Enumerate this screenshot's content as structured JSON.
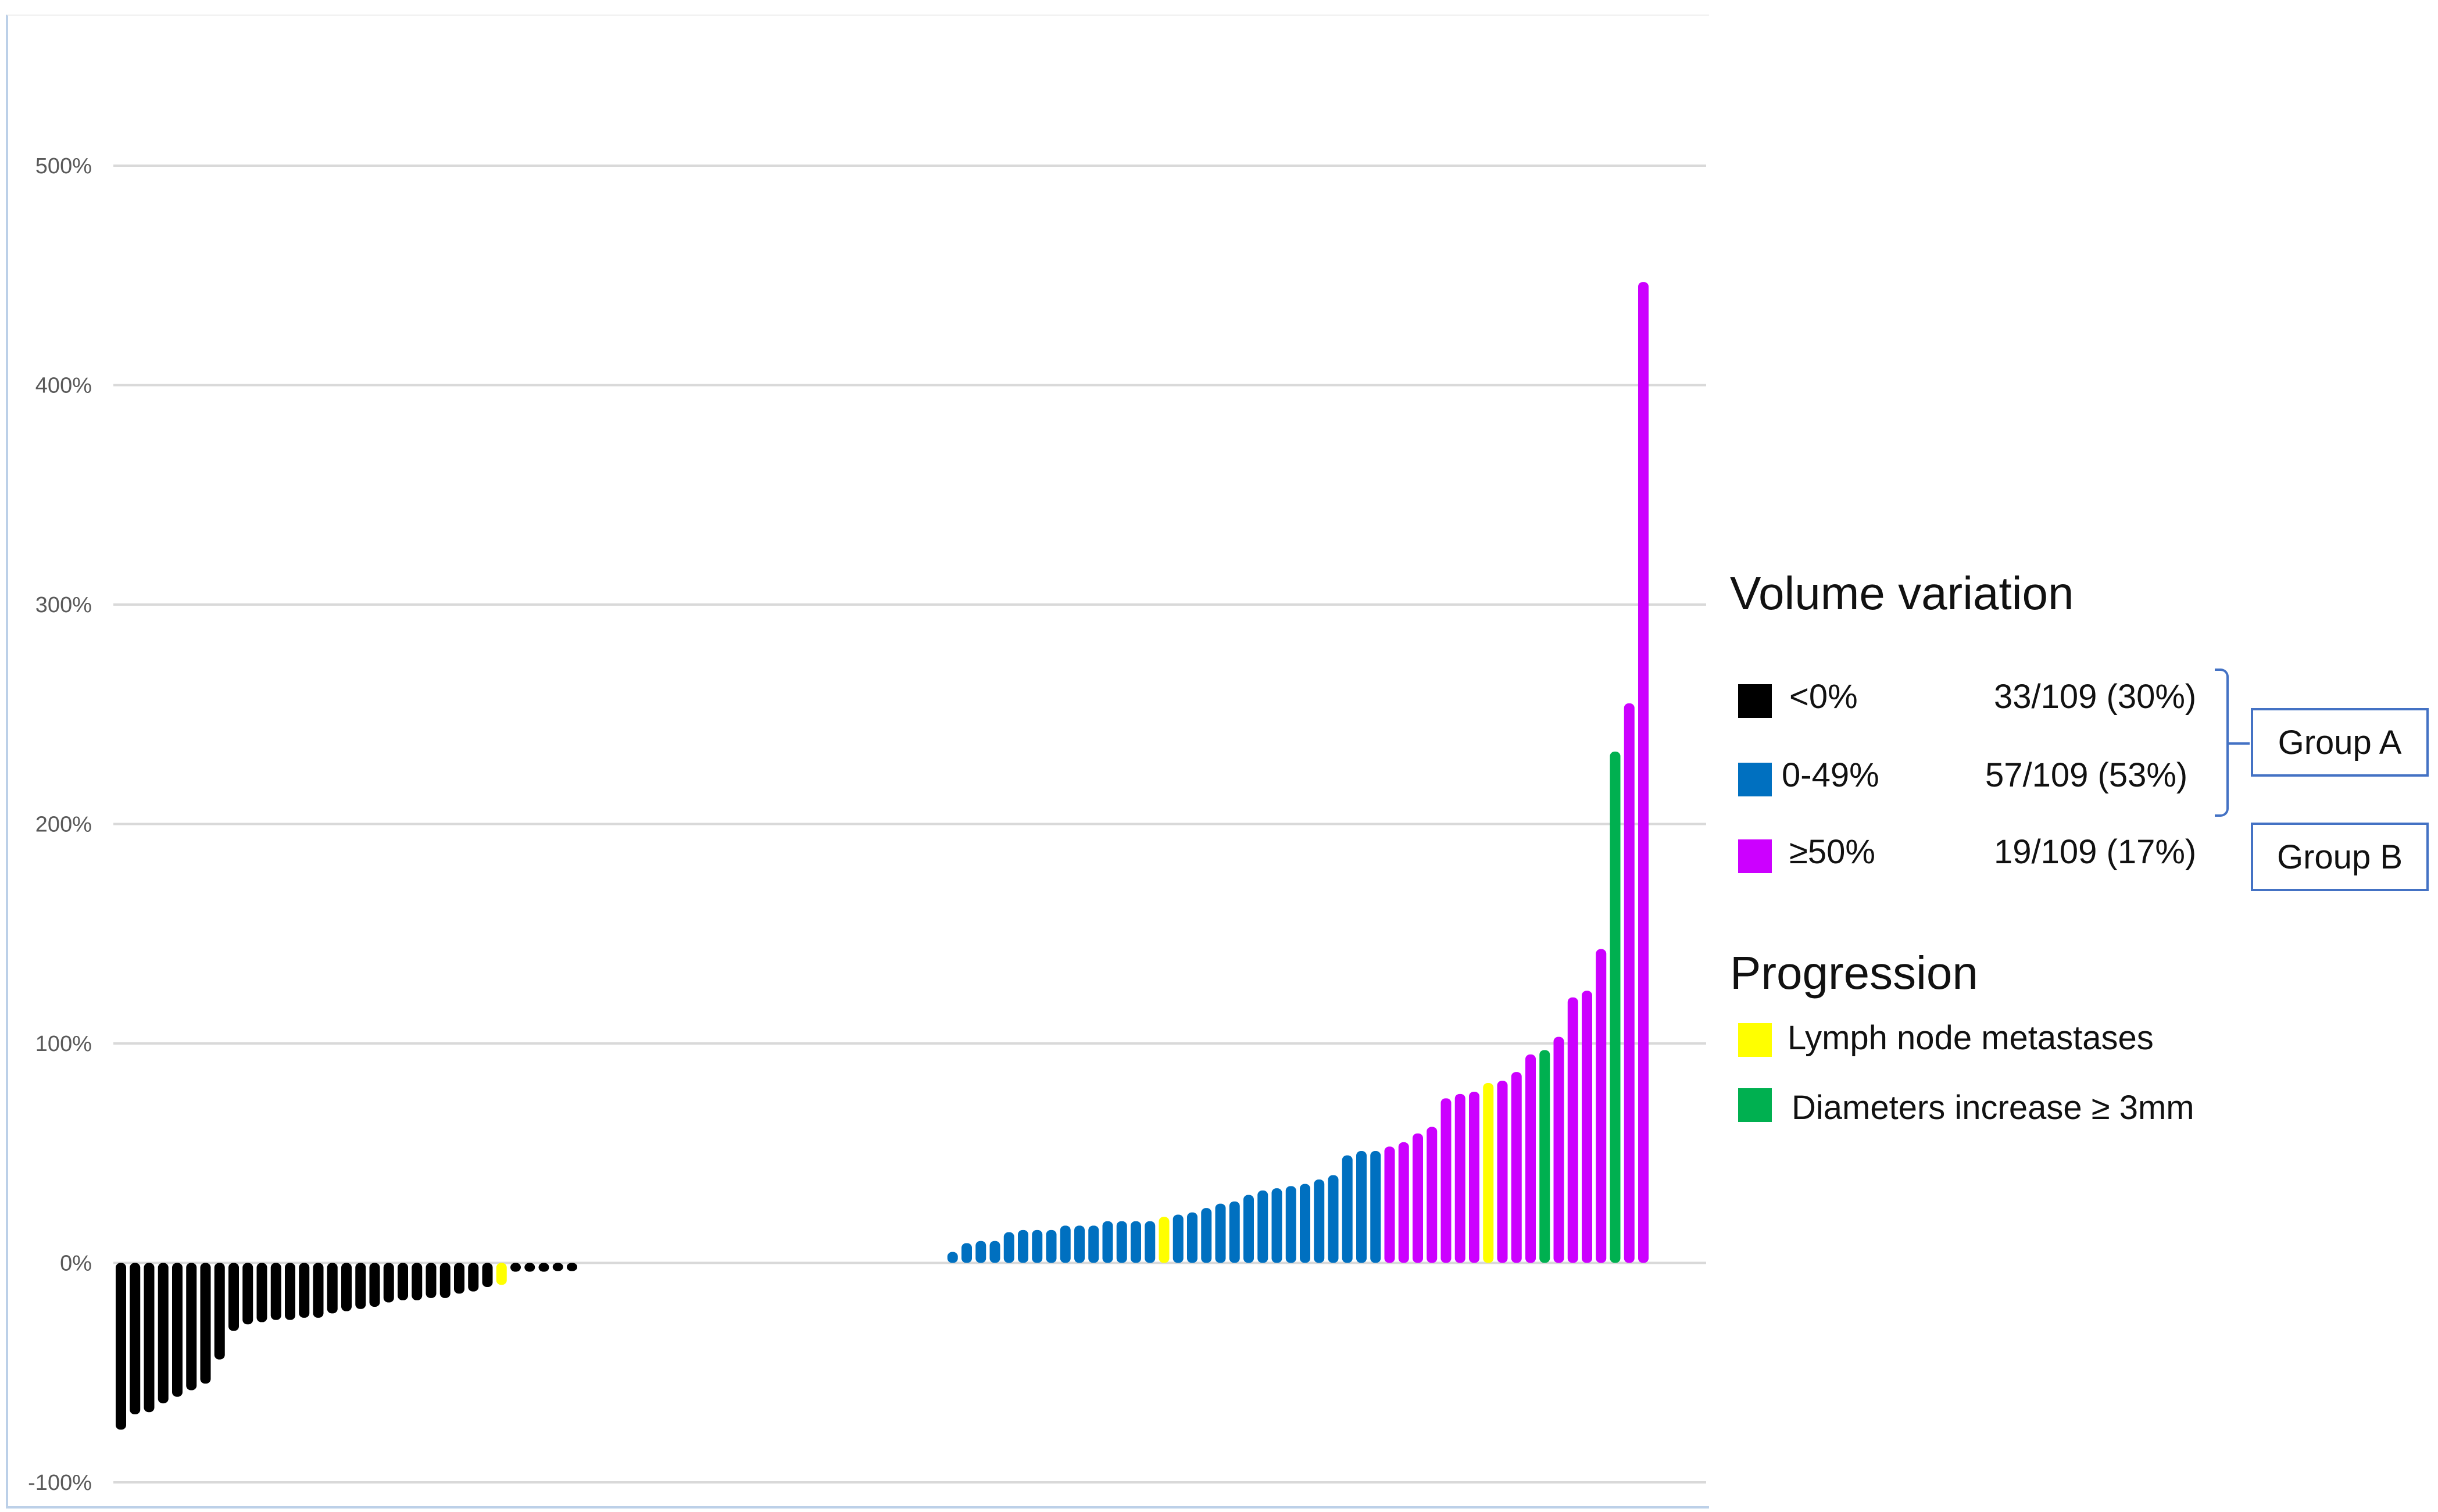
{
  "chart_data": {
    "type": "bar",
    "title": "",
    "xlabel": "",
    "ylabel": "",
    "ylim": [
      -100,
      500
    ],
    "yticks": [
      "-100%",
      "0%",
      "100%",
      "200%",
      "300%",
      "400%",
      "500%"
    ],
    "grid": true,
    "colors": {
      "neg": "#000000",
      "low": "#0070c0",
      "high": "#cc00ff",
      "lymph": "#ffff00",
      "diam": "#00b050"
    },
    "bars": [
      {
        "x": 1,
        "y": -76,
        "c": "neg"
      },
      {
        "x": 2,
        "y": -69,
        "c": "neg"
      },
      {
        "x": 3,
        "y": -68,
        "c": "neg"
      },
      {
        "x": 4,
        "y": -64,
        "c": "neg"
      },
      {
        "x": 5,
        "y": -61,
        "c": "neg"
      },
      {
        "x": 6,
        "y": -58,
        "c": "neg"
      },
      {
        "x": 7,
        "y": -55,
        "c": "neg"
      },
      {
        "x": 8,
        "y": -44,
        "c": "neg"
      },
      {
        "x": 9,
        "y": -31,
        "c": "neg"
      },
      {
        "x": 10,
        "y": -28,
        "c": "neg"
      },
      {
        "x": 11,
        "y": -27,
        "c": "neg"
      },
      {
        "x": 12,
        "y": -26,
        "c": "neg"
      },
      {
        "x": 13,
        "y": -26,
        "c": "neg"
      },
      {
        "x": 14,
        "y": -25,
        "c": "neg"
      },
      {
        "x": 15,
        "y": -25,
        "c": "neg"
      },
      {
        "x": 16,
        "y": -23,
        "c": "neg"
      },
      {
        "x": 17,
        "y": -22,
        "c": "neg"
      },
      {
        "x": 18,
        "y": -21,
        "c": "neg"
      },
      {
        "x": 19,
        "y": -20,
        "c": "neg"
      },
      {
        "x": 20,
        "y": -18,
        "c": "neg"
      },
      {
        "x": 21,
        "y": -17,
        "c": "neg"
      },
      {
        "x": 22,
        "y": -17,
        "c": "neg"
      },
      {
        "x": 23,
        "y": -16,
        "c": "neg"
      },
      {
        "x": 24,
        "y": -16,
        "c": "neg"
      },
      {
        "x": 25,
        "y": -14,
        "c": "neg"
      },
      {
        "x": 26,
        "y": -13,
        "c": "neg"
      },
      {
        "x": 27,
        "y": -11,
        "c": "neg"
      },
      {
        "x": 28,
        "y": -10,
        "c": "lymph"
      },
      {
        "x": 29,
        "y": -4,
        "c": "neg"
      },
      {
        "x": 30,
        "y": -4,
        "c": "neg"
      },
      {
        "x": 31,
        "y": -4,
        "c": "neg"
      },
      {
        "x": 32,
        "y": -3,
        "c": "neg"
      },
      {
        "x": 33,
        "y": -2,
        "c": "neg"
      },
      {
        "x": 60,
        "y": 5,
        "c": "low"
      },
      {
        "x": 61,
        "y": 9,
        "c": "low"
      },
      {
        "x": 62,
        "y": 10,
        "c": "low"
      },
      {
        "x": 63,
        "y": 10,
        "c": "low"
      },
      {
        "x": 64,
        "y": 14,
        "c": "low"
      },
      {
        "x": 65,
        "y": 15,
        "c": "low"
      },
      {
        "x": 66,
        "y": 15,
        "c": "low"
      },
      {
        "x": 67,
        "y": 15,
        "c": "low"
      },
      {
        "x": 68,
        "y": 17,
        "c": "low"
      },
      {
        "x": 69,
        "y": 17,
        "c": "low"
      },
      {
        "x": 70,
        "y": 17,
        "c": "low"
      },
      {
        "x": 71,
        "y": 19,
        "c": "low"
      },
      {
        "x": 72,
        "y": 19,
        "c": "low"
      },
      {
        "x": 73,
        "y": 19,
        "c": "low"
      },
      {
        "x": 74,
        "y": 19,
        "c": "low"
      },
      {
        "x": 75,
        "y": 21,
        "c": "lymph"
      },
      {
        "x": 76,
        "y": 22,
        "c": "low"
      },
      {
        "x": 77,
        "y": 23,
        "c": "low"
      },
      {
        "x": 78,
        "y": 25,
        "c": "low"
      },
      {
        "x": 79,
        "y": 27,
        "c": "low"
      },
      {
        "x": 80,
        "y": 28,
        "c": "low"
      },
      {
        "x": 81,
        "y": 31,
        "c": "low"
      },
      {
        "x": 82,
        "y": 33,
        "c": "low"
      },
      {
        "x": 83,
        "y": 34,
        "c": "low"
      },
      {
        "x": 84,
        "y": 35,
        "c": "low"
      },
      {
        "x": 85,
        "y": 36,
        "c": "low"
      },
      {
        "x": 86,
        "y": 38,
        "c": "low"
      },
      {
        "x": 87,
        "y": 40,
        "c": "low"
      },
      {
        "x": 88,
        "y": 49,
        "c": "low"
      },
      {
        "x": 89,
        "y": 51,
        "c": "low"
      },
      {
        "x": 90,
        "y": 51,
        "c": "low"
      },
      {
        "x": 91,
        "y": 53,
        "c": "high"
      },
      {
        "x": 92,
        "y": 55,
        "c": "high"
      },
      {
        "x": 93,
        "y": 59,
        "c": "high"
      },
      {
        "x": 94,
        "y": 62,
        "c": "high"
      },
      {
        "x": 95,
        "y": 75,
        "c": "high"
      },
      {
        "x": 96,
        "y": 77,
        "c": "high"
      },
      {
        "x": 97,
        "y": 78,
        "c": "high"
      },
      {
        "x": 98,
        "y": 82,
        "c": "lymph"
      },
      {
        "x": 99,
        "y": 83,
        "c": "high"
      },
      {
        "x": 100,
        "y": 87,
        "c": "high"
      },
      {
        "x": 101,
        "y": 95,
        "c": "high"
      },
      {
        "x": 102,
        "y": 97,
        "c": "diam"
      },
      {
        "x": 103,
        "y": 103,
        "c": "high"
      },
      {
        "x": 104,
        "y": 121,
        "c": "high"
      },
      {
        "x": 105,
        "y": 124,
        "c": "high"
      },
      {
        "x": 106,
        "y": 143,
        "c": "high"
      },
      {
        "x": 107,
        "y": 233,
        "c": "diam"
      },
      {
        "x": 108,
        "y": 255,
        "c": "high"
      },
      {
        "x": 109,
        "y": 447,
        "c": "high"
      }
    ]
  },
  "legend": {
    "volume_title": "Volume variation",
    "rows": [
      {
        "label": "<0%",
        "count": "33/109 (30%)",
        "color": "#000000"
      },
      {
        "label": "0-49%",
        "count": "57/109 (53%)",
        "color": "#0070c0"
      },
      {
        "label": "≥50%",
        "count": "19/109 (17%)",
        "color": "#cc00ff"
      }
    ],
    "group_a": "Group A",
    "group_b": "Group B",
    "progression_title": "Progression",
    "progression": [
      {
        "label": "Lymph node metastases",
        "color": "#ffff00"
      },
      {
        "label": "Diameters increase ≥ 3mm",
        "color": "#00b050"
      }
    ]
  }
}
